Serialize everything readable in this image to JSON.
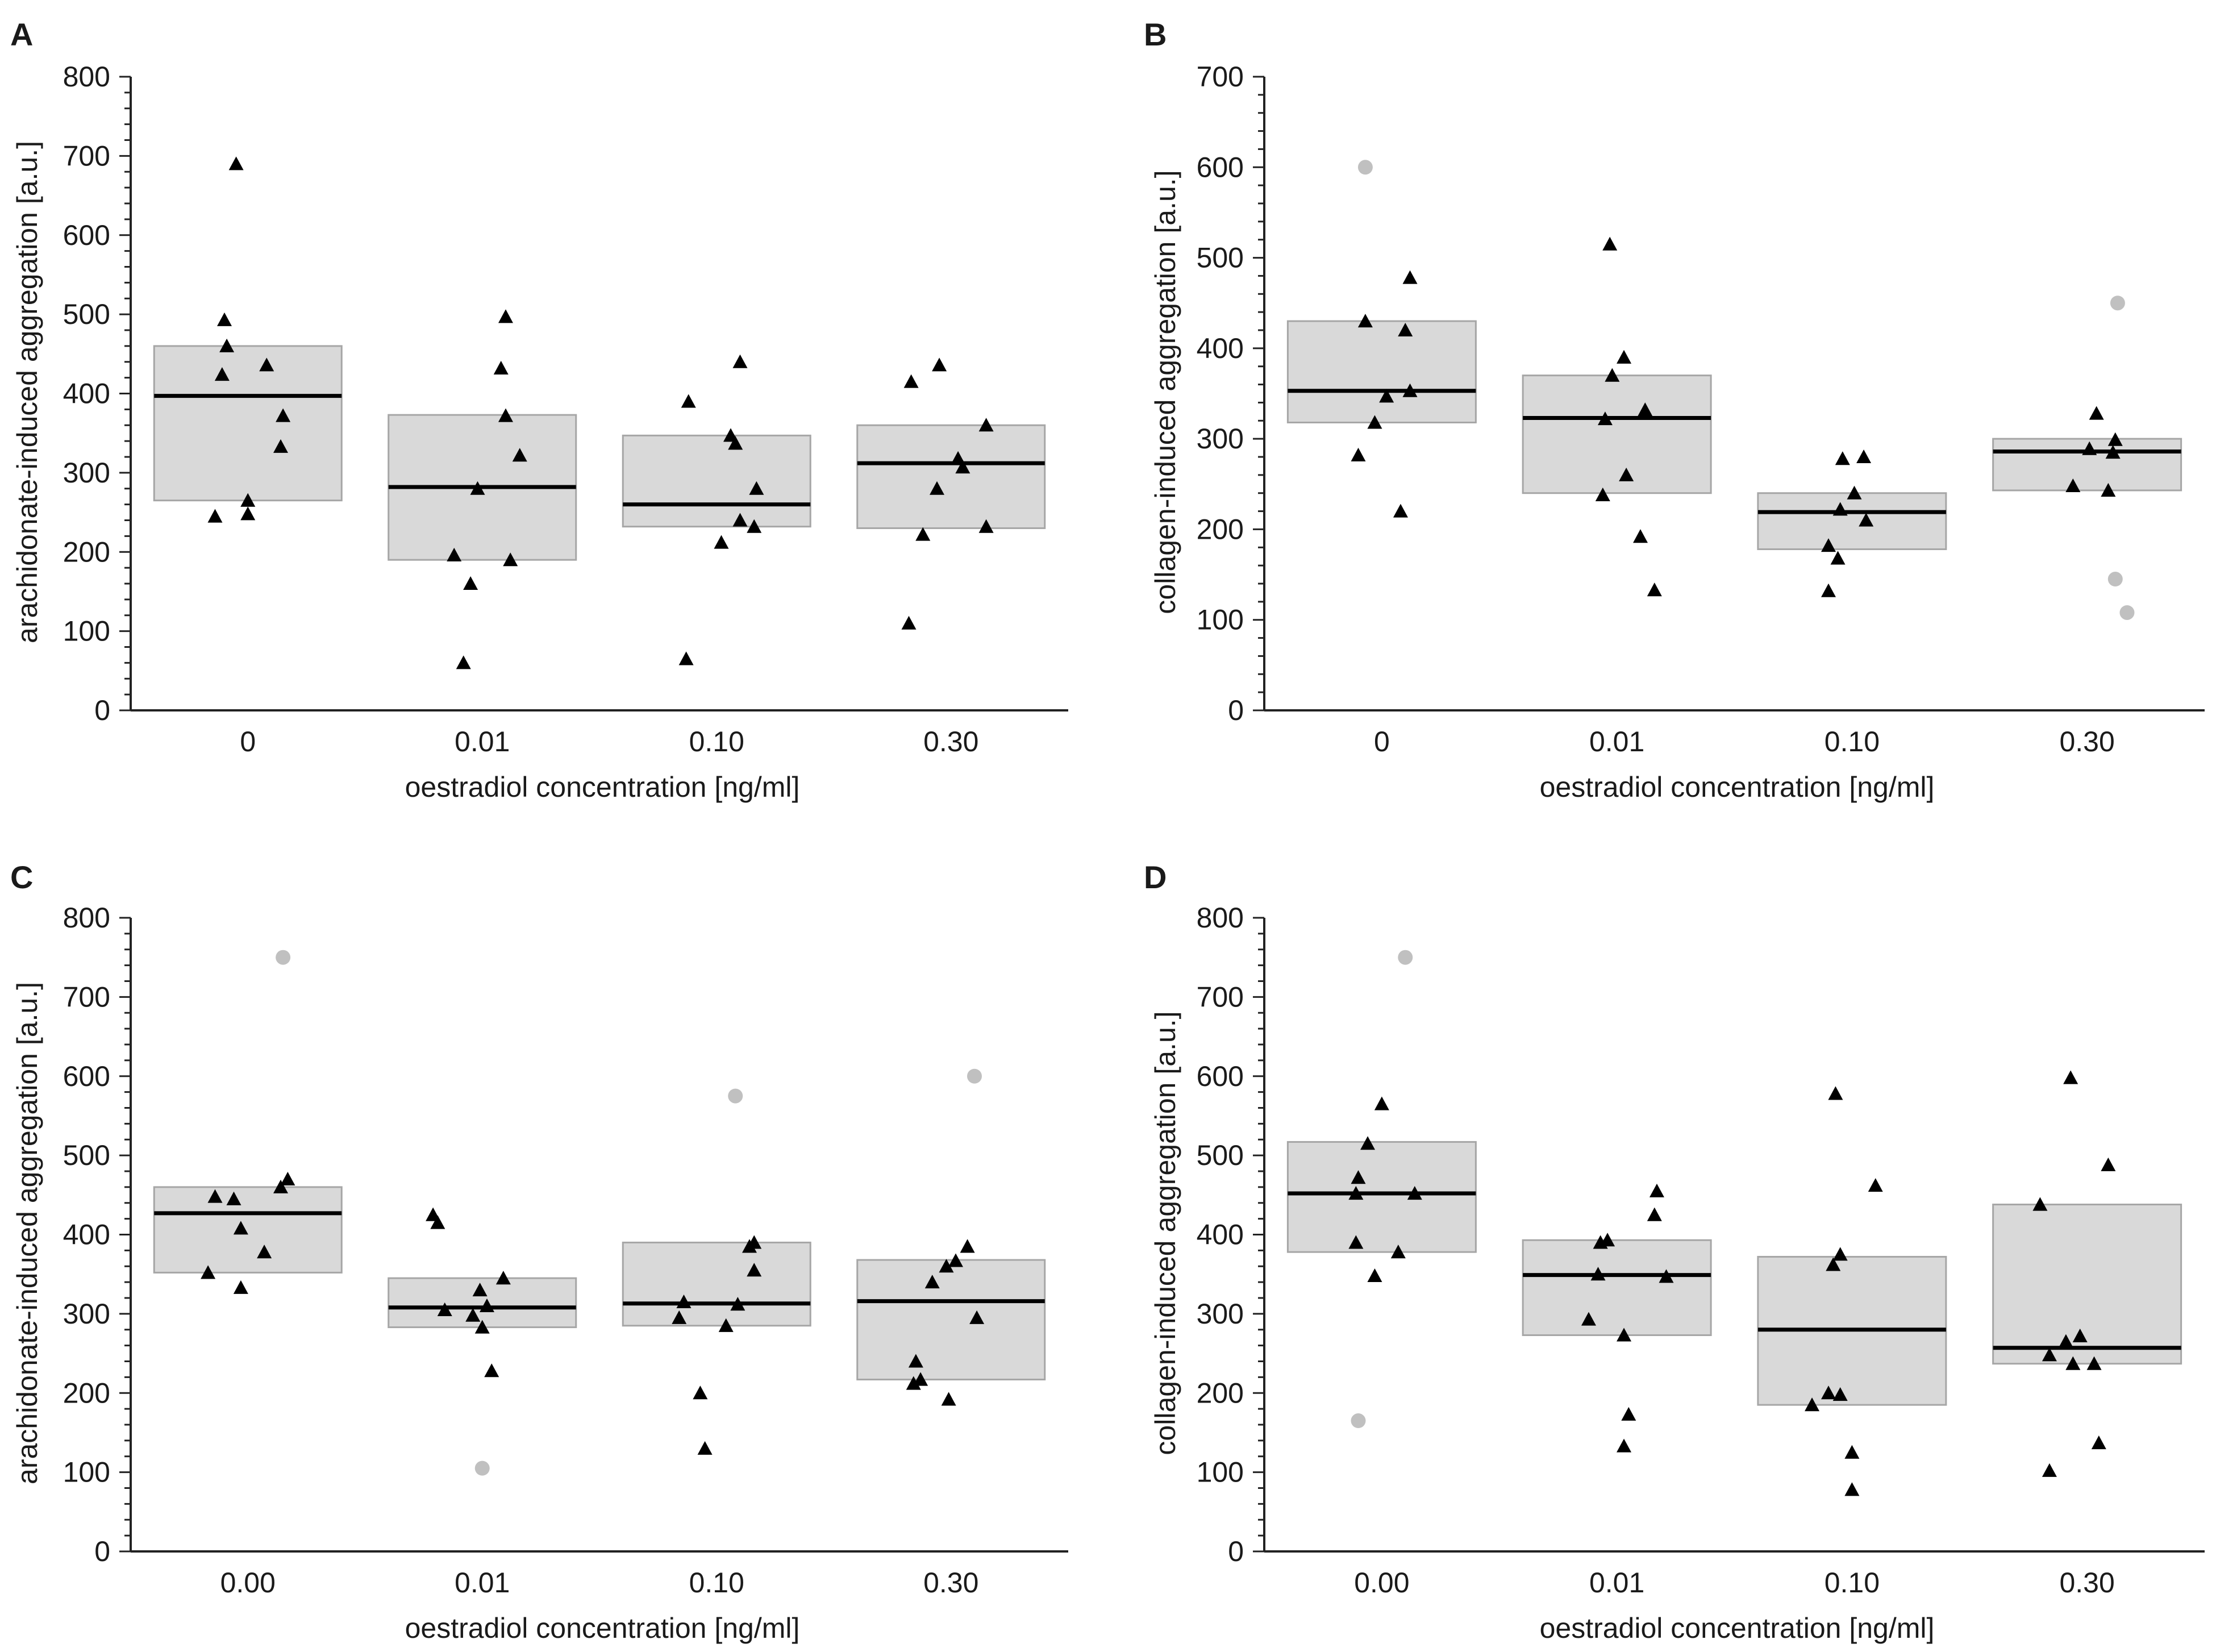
{
  "chart_data": [
    {
      "panel": "A",
      "type": "scatter",
      "xlabel": "oestradiol concentration [ng/ml]",
      "ylabel": "arachidonate-induced aggregation [a.u.]",
      "categories": [
        "0",
        "0.01",
        "0.10",
        "0.30"
      ],
      "ylim": [
        0,
        800
      ],
      "yticks": [
        0,
        100,
        200,
        300,
        400,
        500,
        600,
        700,
        800
      ],
      "groups": [
        {
          "category": "0",
          "q1": 265,
          "median": 397,
          "q3": 460,
          "points": [
            {
              "x": -0.05,
              "y": 690
            },
            {
              "x": -0.1,
              "y": 493
            },
            {
              "x": -0.09,
              "y": 460
            },
            {
              "x": 0.08,
              "y": 436
            },
            {
              "x": -0.11,
              "y": 424
            },
            {
              "x": 0.15,
              "y": 372
            },
            {
              "x": 0.14,
              "y": 333
            },
            {
              "x": 0.0,
              "y": 265
            },
            {
              "x": -0.14,
              "y": 245
            },
            {
              "x": 0.0,
              "y": 248
            }
          ],
          "outliers": []
        },
        {
          "category": "0.01",
          "q1": 190,
          "median": 282,
          "q3": 373,
          "points": [
            {
              "x": 0.1,
              "y": 497
            },
            {
              "x": 0.08,
              "y": 432
            },
            {
              "x": 0.1,
              "y": 372
            },
            {
              "x": 0.16,
              "y": 322
            },
            {
              "x": -0.02,
              "y": 280
            },
            {
              "x": -0.12,
              "y": 196
            },
            {
              "x": 0.12,
              "y": 190
            },
            {
              "x": -0.05,
              "y": 160
            },
            {
              "x": -0.08,
              "y": 60
            }
          ],
          "outliers": []
        },
        {
          "category": "0.10",
          "q1": 232,
          "median": 260,
          "q3": 347,
          "points": [
            {
              "x": 0.1,
              "y": 440
            },
            {
              "x": -0.12,
              "y": 390
            },
            {
              "x": 0.06,
              "y": 347
            },
            {
              "x": 0.08,
              "y": 337
            },
            {
              "x": 0.17,
              "y": 280
            },
            {
              "x": 0.1,
              "y": 240
            },
            {
              "x": 0.16,
              "y": 232
            },
            {
              "x": 0.02,
              "y": 212
            },
            {
              "x": -0.13,
              "y": 65
            }
          ],
          "outliers": []
        },
        {
          "category": "0.30",
          "q1": 230,
          "median": 312,
          "q3": 360,
          "points": [
            {
              "x": -0.05,
              "y": 436
            },
            {
              "x": -0.17,
              "y": 415
            },
            {
              "x": 0.15,
              "y": 360
            },
            {
              "x": 0.03,
              "y": 318
            },
            {
              "x": 0.05,
              "y": 307
            },
            {
              "x": -0.06,
              "y": 280
            },
            {
              "x": 0.15,
              "y": 232
            },
            {
              "x": -0.12,
              "y": 222
            },
            {
              "x": -0.18,
              "y": 110
            }
          ],
          "outliers": []
        }
      ]
    },
    {
      "panel": "B",
      "type": "scatter",
      "xlabel": "oestradiol concentration [ng/ml]",
      "ylabel": "collagen-induced aggregation [a.u.]",
      "categories": [
        "0",
        "0.01",
        "0.10",
        "0.30"
      ],
      "ylim": [
        0,
        700
      ],
      "yticks": [
        0,
        100,
        200,
        300,
        400,
        500,
        600,
        700
      ],
      "groups": [
        {
          "category": "0",
          "q1": 318,
          "median": 353,
          "q3": 430,
          "points": [
            {
              "x": 0.12,
              "y": 478
            },
            {
              "x": -0.07,
              "y": 430
            },
            {
              "x": 0.1,
              "y": 420
            },
            {
              "x": 0.12,
              "y": 353
            },
            {
              "x": 0.02,
              "y": 347
            },
            {
              "x": -0.03,
              "y": 318
            },
            {
              "x": -0.1,
              "y": 282
            },
            {
              "x": 0.08,
              "y": 220
            }
          ],
          "outliers": [
            {
              "x": -0.07,
              "y": 600
            }
          ]
        },
        {
          "category": "0.01",
          "q1": 240,
          "median": 323,
          "q3": 370,
          "points": [
            {
              "x": -0.03,
              "y": 515
            },
            {
              "x": 0.03,
              "y": 390
            },
            {
              "x": -0.02,
              "y": 370
            },
            {
              "x": 0.12,
              "y": 332
            },
            {
              "x": -0.05,
              "y": 322
            },
            {
              "x": 0.04,
              "y": 260
            },
            {
              "x": -0.06,
              "y": 238
            },
            {
              "x": 0.1,
              "y": 192
            },
            {
              "x": 0.16,
              "y": 133
            }
          ],
          "outliers": []
        },
        {
          "category": "0.10",
          "q1": 178,
          "median": 219,
          "q3": 240,
          "points": [
            {
              "x": -0.04,
              "y": 278
            },
            {
              "x": 0.05,
              "y": 280
            },
            {
              "x": 0.01,
              "y": 240
            },
            {
              "x": -0.05,
              "y": 222
            },
            {
              "x": 0.06,
              "y": 210
            },
            {
              "x": -0.1,
              "y": 182
            },
            {
              "x": -0.06,
              "y": 168
            },
            {
              "x": -0.1,
              "y": 132
            }
          ],
          "outliers": []
        },
        {
          "category": "0.30",
          "q1": 243,
          "median": 286,
          "q3": 300,
          "points": [
            {
              "x": 0.04,
              "y": 328
            },
            {
              "x": 0.12,
              "y": 299
            },
            {
              "x": 0.01,
              "y": 289
            },
            {
              "x": 0.11,
              "y": 285
            },
            {
              "x": -0.06,
              "y": 248
            },
            {
              "x": 0.09,
              "y": 243
            }
          ],
          "outliers": [
            {
              "x": 0.13,
              "y": 450
            },
            {
              "x": 0.12,
              "y": 145
            },
            {
              "x": 0.17,
              "y": 108
            }
          ]
        }
      ]
    },
    {
      "panel": "C",
      "type": "scatter",
      "xlabel": "oestradiol concentration [ng/ml]",
      "ylabel": "arachidonate-induced aggregation [a.u.]",
      "categories": [
        "0.00",
        "0.01",
        "0.10",
        "0.30"
      ],
      "ylim": [
        0,
        800
      ],
      "yticks": [
        0,
        100,
        200,
        300,
        400,
        500,
        600,
        700,
        800
      ],
      "groups": [
        {
          "category": "0.00",
          "q1": 352,
          "median": 427,
          "q3": 460,
          "points": [
            {
              "x": 0.17,
              "y": 470
            },
            {
              "x": 0.14,
              "y": 460
            },
            {
              "x": -0.14,
              "y": 448
            },
            {
              "x": -0.06,
              "y": 445
            },
            {
              "x": -0.03,
              "y": 408
            },
            {
              "x": 0.07,
              "y": 378
            },
            {
              "x": -0.17,
              "y": 352
            },
            {
              "x": -0.03,
              "y": 333
            }
          ],
          "outliers": [
            {
              "x": 0.15,
              "y": 750
            }
          ]
        },
        {
          "category": "0.01",
          "q1": 283,
          "median": 308,
          "q3": 345,
          "points": [
            {
              "x": -0.21,
              "y": 425
            },
            {
              "x": -0.19,
              "y": 415
            },
            {
              "x": 0.09,
              "y": 345
            },
            {
              "x": -0.01,
              "y": 330
            },
            {
              "x": -0.16,
              "y": 305
            },
            {
              "x": 0.02,
              "y": 310
            },
            {
              "x": -0.04,
              "y": 298
            },
            {
              "x": 0.0,
              "y": 283
            },
            {
              "x": 0.04,
              "y": 228
            }
          ],
          "outliers": [
            {
              "x": 0.0,
              "y": 105
            }
          ]
        },
        {
          "category": "0.10",
          "q1": 285,
          "median": 313,
          "q3": 390,
          "points": [
            {
              "x": 0.16,
              "y": 390
            },
            {
              "x": 0.14,
              "y": 385
            },
            {
              "x": 0.16,
              "y": 355
            },
            {
              "x": -0.14,
              "y": 315
            },
            {
              "x": 0.09,
              "y": 312
            },
            {
              "x": -0.16,
              "y": 295
            },
            {
              "x": 0.04,
              "y": 285
            },
            {
              "x": -0.07,
              "y": 200
            },
            {
              "x": -0.05,
              "y": 130
            }
          ],
          "outliers": [
            {
              "x": 0.08,
              "y": 575
            }
          ]
        },
        {
          "category": "0.30",
          "q1": 217,
          "median": 316,
          "q3": 368,
          "points": [
            {
              "x": 0.07,
              "y": 385
            },
            {
              "x": 0.02,
              "y": 367
            },
            {
              "x": -0.02,
              "y": 360
            },
            {
              "x": -0.08,
              "y": 340
            },
            {
              "x": 0.11,
              "y": 295
            },
            {
              "x": -0.15,
              "y": 240
            },
            {
              "x": -0.13,
              "y": 217
            },
            {
              "x": -0.16,
              "y": 212
            },
            {
              "x": -0.01,
              "y": 192
            }
          ],
          "outliers": [
            {
              "x": 0.1,
              "y": 600
            }
          ]
        }
      ]
    },
    {
      "panel": "D",
      "type": "scatter",
      "xlabel": "oestradiol concentration [ng/ml]",
      "ylabel": "collagen-induced aggregation [a.u.]",
      "categories": [
        "0.00",
        "0.01",
        "0.10",
        "0.30"
      ],
      "ylim": [
        0,
        800
      ],
      "yticks": [
        0,
        100,
        200,
        300,
        400,
        500,
        600,
        700,
        800
      ],
      "groups": [
        {
          "category": "0.00",
          "q1": 378,
          "median": 452,
          "q3": 517,
          "points": [
            {
              "x": 0.0,
              "y": 565
            },
            {
              "x": -0.06,
              "y": 515
            },
            {
              "x": -0.1,
              "y": 472
            },
            {
              "x": -0.11,
              "y": 452
            },
            {
              "x": 0.14,
              "y": 452
            },
            {
              "x": -0.11,
              "y": 390
            },
            {
              "x": 0.07,
              "y": 378
            },
            {
              "x": -0.03,
              "y": 348
            }
          ],
          "outliers": [
            {
              "x": 0.1,
              "y": 750
            },
            {
              "x": -0.1,
              "y": 165
            }
          ]
        },
        {
          "category": "0.01",
          "q1": 273,
          "median": 349,
          "q3": 393,
          "points": [
            {
              "x": 0.17,
              "y": 455
            },
            {
              "x": 0.16,
              "y": 425
            },
            {
              "x": -0.04,
              "y": 393
            },
            {
              "x": -0.07,
              "y": 390
            },
            {
              "x": -0.08,
              "y": 350
            },
            {
              "x": 0.21,
              "y": 347
            },
            {
              "x": -0.12,
              "y": 293
            },
            {
              "x": 0.03,
              "y": 273
            },
            {
              "x": 0.05,
              "y": 173
            },
            {
              "x": 0.03,
              "y": 133
            }
          ],
          "outliers": []
        },
        {
          "category": "0.10",
          "q1": 185,
          "median": 280,
          "q3": 372,
          "points": [
            {
              "x": -0.07,
              "y": 578
            },
            {
              "x": 0.1,
              "y": 462
            },
            {
              "x": -0.05,
              "y": 375
            },
            {
              "x": -0.08,
              "y": 362
            },
            {
              "x": -0.17,
              "y": 185
            },
            {
              "x": -0.1,
              "y": 200
            },
            {
              "x": -0.05,
              "y": 198
            },
            {
              "x": 0.0,
              "y": 125
            },
            {
              "x": 0.0,
              "y": 78
            }
          ],
          "outliers": []
        },
        {
          "category": "0.30",
          "q1": 237,
          "median": 257,
          "q3": 438,
          "points": [
            {
              "x": -0.07,
              "y": 598
            },
            {
              "x": 0.09,
              "y": 488
            },
            {
              "x": -0.2,
              "y": 438
            },
            {
              "x": -0.03,
              "y": 272
            },
            {
              "x": -0.09,
              "y": 265
            },
            {
              "x": -0.16,
              "y": 248
            },
            {
              "x": -0.06,
              "y": 237
            },
            {
              "x": 0.03,
              "y": 237
            },
            {
              "x": 0.05,
              "y": 137
            },
            {
              "x": -0.16,
              "y": 102
            }
          ],
          "outliers": []
        }
      ]
    }
  ],
  "colors": {
    "box_fill": "#d9d9d9",
    "box_stroke": "#a6a6a6",
    "median": "#000000",
    "point": "#000000",
    "outlier": "#c0c0c0",
    "axis": "#222222"
  }
}
